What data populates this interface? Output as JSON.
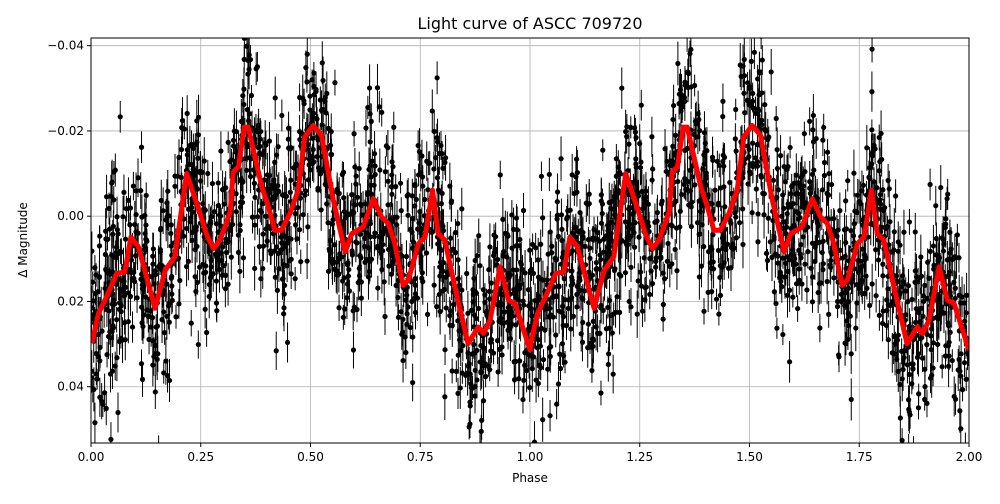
{
  "chart_data": {
    "type": "scatter",
    "title": "Light curve of ASCC 709720",
    "xlabel": "Phase",
    "ylabel": "Δ Magnitude",
    "xlim": [
      0,
      2
    ],
    "ylim": [
      0.0532,
      -0.0418
    ],
    "y_inverted": true,
    "grid": true,
    "xticks": [
      "0.00",
      "0.25",
      "0.50",
      "0.75",
      "1.00",
      "1.25",
      "1.50",
      "1.75",
      "2.00"
    ],
    "xtick_values": [
      0,
      0.25,
      0.5,
      0.75,
      1,
      1.25,
      1.5,
      1.75,
      2
    ],
    "yticks": [
      "−0.04",
      "−0.02",
      "0.00",
      "0.02",
      "0.04"
    ],
    "ytick_values": [
      -0.04,
      -0.02,
      0,
      0.02,
      0.04
    ],
    "series": [
      {
        "kind": "errorbar-scatter",
        "color": "#000000",
        "spread_std": 0.011,
        "errorbar_halfwidth": 0.004
      },
      {
        "kind": "line",
        "color": "#ff0000",
        "period": 1,
        "x": [
          0.002,
          0.017,
          0.039,
          0.059,
          0.077,
          0.091,
          0.108,
          0.146,
          0.169,
          0.191,
          0.218,
          0.241,
          0.264,
          0.279,
          0.294,
          0.317,
          0.324,
          0.336,
          0.349,
          0.358,
          0.389,
          0.404,
          0.419,
          0.434,
          0.453,
          0.472,
          0.487,
          0.506,
          0.525,
          0.552,
          0.579,
          0.594,
          0.62,
          0.643,
          0.662,
          0.677,
          0.692,
          0.711,
          0.723,
          0.746,
          0.761,
          0.778,
          0.791,
          0.806,
          0.829,
          0.859,
          0.882,
          0.894,
          0.909,
          0.932,
          0.951,
          0.966,
          1.0
        ],
        "y": [
          0.0298,
          0.0228,
          0.0181,
          0.0134,
          0.0131,
          0.0049,
          0.0072,
          0.0216,
          0.0127,
          0.0095,
          -0.01,
          -0.003,
          0.0045,
          0.0076,
          0.0056,
          -0.001,
          -0.0104,
          -0.0116,
          -0.0209,
          -0.0209,
          -0.0069,
          -0.0022,
          0.0033,
          0.0033,
          -0.0006,
          -0.0061,
          -0.0186,
          -0.0213,
          -0.019,
          -0.0038,
          0.0084,
          0.0041,
          0.0025,
          -0.0041,
          0.0002,
          0.0017,
          0.0064,
          0.0162,
          0.015,
          0.0064,
          0.0049,
          -0.0061,
          0.0041,
          0.0056,
          0.0166,
          0.0299,
          0.026,
          0.0275,
          0.0244,
          0.0119,
          0.0197,
          0.0205,
          0.0314
        ]
      }
    ]
  }
}
